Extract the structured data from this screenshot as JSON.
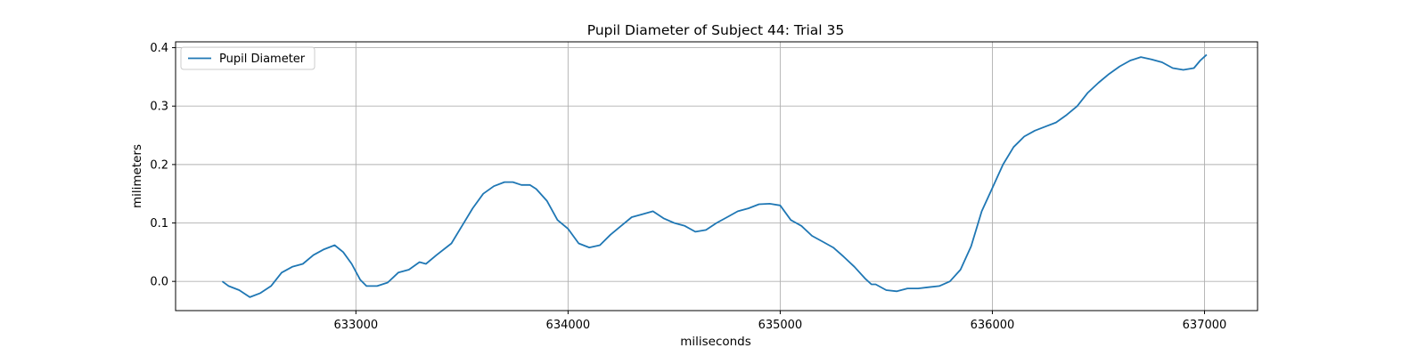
{
  "chart_data": {
    "type": "line",
    "title": "Pupil Diameter of Subject 44: Trial 35",
    "xlabel": "miliseconds",
    "ylabel": "milimeters",
    "xlim": [
      632150,
      637250
    ],
    "ylim": [
      -0.05,
      0.41
    ],
    "xticks": [
      633000,
      634000,
      635000,
      636000,
      637000
    ],
    "yticks": [
      0.0,
      0.1,
      0.2,
      0.3,
      0.4
    ],
    "xtick_labels": [
      "633000",
      "634000",
      "635000",
      "636000",
      "637000"
    ],
    "ytick_labels": [
      "0.0",
      "0.1",
      "0.2",
      "0.3",
      "0.4"
    ],
    "grid": true,
    "legend_position": "top-left",
    "colors": {
      "line": "#1f77b4",
      "grid": "#b0b0b0",
      "axes": "#000000"
    },
    "series": [
      {
        "name": "Pupil Diameter",
        "x": [
          632370,
          632400,
          632450,
          632500,
          632550,
          632600,
          632650,
          632700,
          632750,
          632800,
          632850,
          632900,
          632940,
          632980,
          633020,
          633050,
          633100,
          633150,
          633200,
          633250,
          633300,
          633330,
          633380,
          633450,
          633500,
          633550,
          633600,
          633650,
          633700,
          633740,
          633780,
          633820,
          633850,
          633900,
          633950,
          634000,
          634050,
          634100,
          634150,
          634200,
          634250,
          634300,
          634350,
          634400,
          634450,
          634500,
          634550,
          634600,
          634650,
          634700,
          634750,
          634800,
          634850,
          634900,
          634950,
          635000,
          635050,
          635100,
          635150,
          635200,
          635250,
          635300,
          635350,
          635400,
          635430,
          635450,
          635500,
          635550,
          635600,
          635650,
          635700,
          635750,
          635800,
          635850,
          635900,
          635950,
          636000,
          636050,
          636100,
          636150,
          636200,
          636250,
          636300,
          636350,
          636400,
          636450,
          636500,
          636550,
          636600,
          636650,
          636700,
          636750,
          636800,
          636850,
          636900,
          636950,
          636980,
          637010
        ],
        "values": [
          0.0,
          -0.008,
          -0.015,
          -0.027,
          -0.02,
          -0.008,
          0.015,
          0.025,
          0.03,
          0.045,
          0.055,
          0.062,
          0.05,
          0.03,
          0.003,
          -0.008,
          -0.008,
          -0.002,
          0.015,
          0.02,
          0.033,
          0.03,
          0.045,
          0.065,
          0.095,
          0.125,
          0.15,
          0.163,
          0.17,
          0.17,
          0.165,
          0.165,
          0.158,
          0.138,
          0.105,
          0.09,
          0.065,
          0.058,
          0.062,
          0.08,
          0.095,
          0.11,
          0.115,
          0.12,
          0.108,
          0.1,
          0.095,
          0.085,
          0.088,
          0.1,
          0.11,
          0.12,
          0.125,
          0.132,
          0.133,
          0.13,
          0.105,
          0.095,
          0.078,
          0.068,
          0.058,
          0.042,
          0.025,
          0.005,
          -0.005,
          -0.005,
          -0.015,
          -0.017,
          -0.012,
          -0.012,
          -0.01,
          -0.008,
          0.0,
          0.02,
          0.06,
          0.12,
          0.16,
          0.2,
          0.23,
          0.248,
          0.258,
          0.265,
          0.272,
          0.285,
          0.3,
          0.323,
          0.34,
          0.355,
          0.368,
          0.378,
          0.384,
          0.38,
          0.375,
          0.365,
          0.362,
          0.365,
          0.378,
          0.388
        ]
      }
    ]
  }
}
